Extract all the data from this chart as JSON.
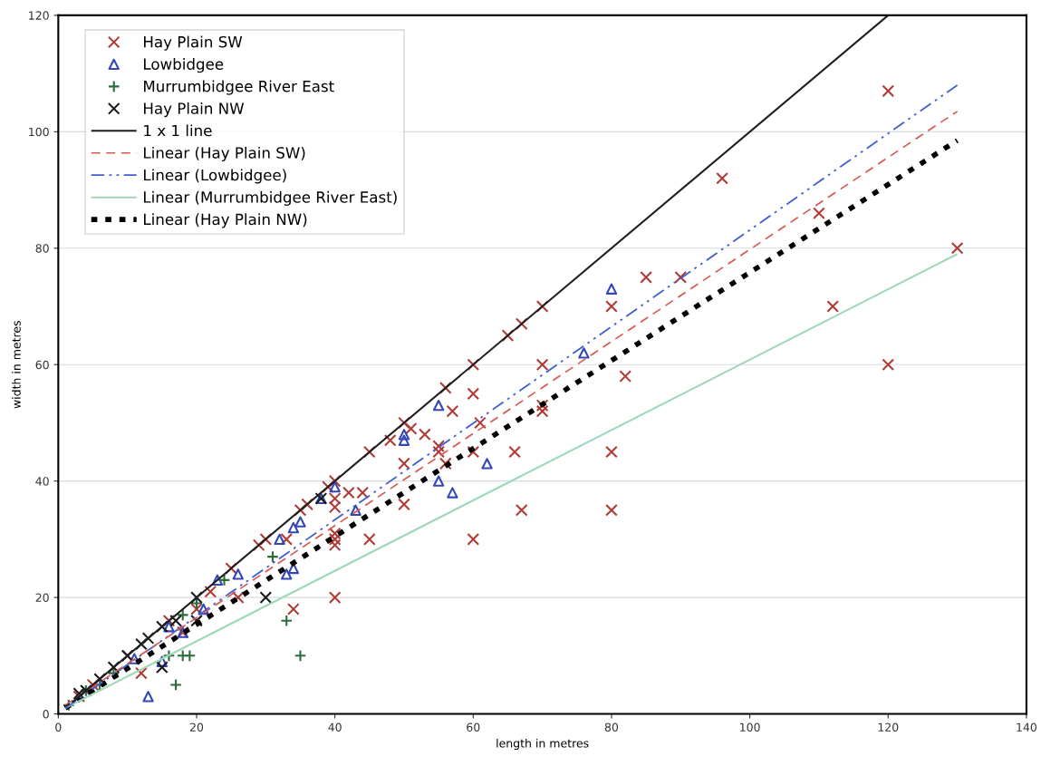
{
  "chart_data": {
    "type": "scatter",
    "xlabel": "length in metres",
    "ylabel": "width in metres",
    "xlim": [
      0,
      140
    ],
    "ylim": [
      0,
      120
    ],
    "xticks": [
      0,
      20,
      40,
      60,
      80,
      100,
      120,
      140
    ],
    "yticks": [
      0,
      20,
      40,
      60,
      80,
      100,
      120
    ],
    "grid": "y",
    "legend": "top left",
    "series": [
      {
        "name": "Hay Plain SW",
        "type": "scatter",
        "marker": "cross",
        "color": "#b03a34",
        "x": [
          120,
          96,
          110,
          130,
          120,
          112,
          85,
          90,
          80,
          82,
          70,
          70,
          70,
          70,
          67,
          65,
          66,
          80,
          80,
          67,
          60,
          60,
          60,
          57,
          61,
          56,
          50,
          51,
          53,
          48,
          45,
          55,
          55,
          56,
          60,
          50,
          50,
          45,
          40,
          39,
          42,
          44,
          40,
          40,
          40,
          40,
          40,
          36,
          35,
          40,
          34,
          33,
          30,
          29,
          26,
          18,
          12,
          16,
          25,
          22,
          20,
          10,
          5,
          3
        ],
        "values": [
          107,
          92,
          86,
          80,
          60,
          70,
          75,
          75,
          70,
          58,
          60,
          52,
          53,
          70,
          67,
          65,
          45,
          45,
          35,
          35,
          30,
          60,
          55,
          52,
          50,
          56,
          50,
          49,
          48,
          47,
          45,
          46,
          45,
          43,
          45,
          43,
          36,
          30,
          40,
          39,
          38,
          38,
          37,
          35.5,
          31,
          30,
          29,
          36,
          35,
          20,
          18,
          30,
          30,
          29,
          20,
          14,
          7,
          16,
          25,
          21,
          18,
          10,
          5,
          3
        ]
      },
      {
        "name": "Lowbidgee",
        "type": "scatter",
        "marker": "triangle",
        "color": "#3346b8",
        "x": [
          80,
          76,
          62,
          55,
          50,
          50,
          55,
          57,
          40,
          38,
          43,
          35,
          34,
          32,
          34,
          33,
          26,
          23,
          18,
          13,
          15,
          11,
          16,
          21
        ],
        "values": [
          73,
          62,
          43,
          53,
          48,
          47,
          40,
          38,
          39,
          37,
          35,
          33,
          32,
          30,
          25,
          24,
          24,
          23,
          14,
          3,
          9,
          9.5,
          15,
          18
        ]
      },
      {
        "name": "Murrumbidgee River East",
        "type": "scatter",
        "marker": "plus",
        "color": "#2e6b3a",
        "x": [
          35,
          33,
          18,
          19,
          17,
          16,
          31,
          1.5,
          4,
          6,
          8,
          18,
          20,
          24
        ],
        "values": [
          10,
          16,
          10,
          10,
          5,
          10,
          27,
          1.5,
          4,
          5,
          7,
          17,
          19,
          23
        ]
      },
      {
        "name": "Hay Plain NW",
        "type": "scatter",
        "marker": "cross",
        "color": "#1a1a1a",
        "x": [
          30,
          20,
          15,
          13,
          15,
          10,
          8,
          6,
          4,
          3,
          12,
          17,
          20,
          38
        ],
        "values": [
          20,
          20,
          8,
          13,
          15,
          10,
          8,
          6,
          4,
          3.5,
          12,
          16,
          16,
          37
        ]
      },
      {
        "name": "1 x 1 line",
        "type": "line",
        "line_style": "solid",
        "color": "#1f1f1f",
        "x": [
          2,
          120
        ],
        "values": [
          2,
          120
        ]
      },
      {
        "name": "Linear (Hay Plain SW)",
        "type": "line",
        "line_style": "dashed",
        "color": "#d9574e",
        "x": [
          1,
          130
        ],
        "values": [
          1.5,
          103.5
        ]
      },
      {
        "name": "Linear (Lowbidgee)",
        "type": "line",
        "line_style": "dashdot",
        "color": "#3f5fd0",
        "x": [
          1,
          130
        ],
        "values": [
          1,
          108
        ]
      },
      {
        "name": "Linear (Murrumbidgee River East)",
        "type": "line",
        "line_style": "solid",
        "color": "#9fd8b8",
        "x": [
          1,
          130
        ],
        "values": [
          1,
          79
        ]
      },
      {
        "name": "Linear (Hay Plain NW)",
        "type": "line",
        "line_style": "dotted",
        "color": "#000000",
        "x": [
          1,
          130
        ],
        "values": [
          1,
          98.5
        ]
      }
    ]
  }
}
